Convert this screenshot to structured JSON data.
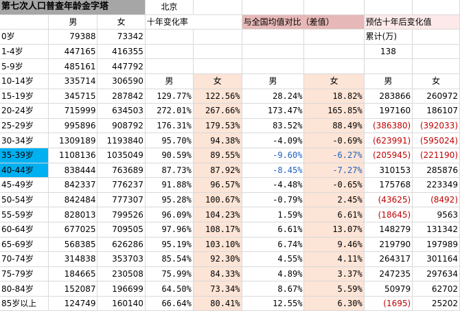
{
  "header": {
    "title": "第七次人口普查年龄金字塔",
    "city": "北京",
    "growth_label": "十年变化率",
    "compare_label": "与全国均值对比（差值）",
    "forecast_label": "预估十年后变化值",
    "cumulative_label": "累计(万)",
    "cumulative_value": "138",
    "male": "男",
    "female": "女"
  },
  "rows": [
    {
      "age": "0岁",
      "m": "79388",
      "f": "73342"
    },
    {
      "age": "1-4岁",
      "m": "447165",
      "f": "416355"
    },
    {
      "age": "5-9岁",
      "m": "485161",
      "f": "447792"
    },
    {
      "age": "10-14岁",
      "m": "335714",
      "f": "306590"
    },
    {
      "age": "15-19岁",
      "m": "345715",
      "f": "287842",
      "gm": "129.77%",
      "gf": "122.56%",
      "cm": "28.24%",
      "cf": "18.82%",
      "fm": "283866",
      "ff": "260972"
    },
    {
      "age": "20-24岁",
      "m": "715999",
      "f": "634503",
      "gm": "272.01%",
      "gf": "267.66%",
      "cm": "173.47%",
      "cf": "165.85%",
      "fm": "197160",
      "ff": "186107"
    },
    {
      "age": "25-29岁",
      "m": "995896",
      "f": "908792",
      "gm": "176.31%",
      "gf": "179.53%",
      "cm": "83.52%",
      "cf": "88.49%",
      "fm": "(386380)",
      "ff": "(392033)"
    },
    {
      "age": "30-34岁",
      "m": "1309189",
      "f": "1193840",
      "gm": "95.70%",
      "gf": "94.38%",
      "cm": "-4.09%",
      "cf": "-0.69%",
      "fm": "(623991)",
      "ff": "(595024)"
    },
    {
      "age": "35-39岁",
      "m": "1108136",
      "f": "1035049",
      "gm": "90.59%",
      "gf": "89.55%",
      "cm": "-9.60%",
      "cf": "-6.27%",
      "fm": "(205945)",
      "ff": "(221190)"
    },
    {
      "age": "40-44岁",
      "m": "838444",
      "f": "763689",
      "gm": "87.73%",
      "gf": "87.92%",
      "cm": "-8.45%",
      "cf": "-7.27%",
      "fm": "310153",
      "ff": "285876"
    },
    {
      "age": "45-49岁",
      "m": "842337",
      "f": "776237",
      "gm": "91.88%",
      "gf": "96.57%",
      "cm": "-4.48%",
      "cf": "-0.65%",
      "fm": "175768",
      "ff": "223349"
    },
    {
      "age": "50-54岁",
      "m": "842484",
      "f": "777307",
      "gm": "95.28%",
      "gf": "100.67%",
      "cm": "-0.79%",
      "cf": "2.45%",
      "fm": "(43625)",
      "ff": "(8492)"
    },
    {
      "age": "55-59岁",
      "m": "828013",
      "f": "799526",
      "gm": "96.09%",
      "gf": "104.23%",
      "cm": "1.59%",
      "cf": "6.61%",
      "fm": "(18645)",
      "ff": "9563"
    },
    {
      "age": "60-64岁",
      "m": "677025",
      "f": "709505",
      "gm": "97.96%",
      "gf": "108.17%",
      "cm": "6.61%",
      "cf": "13.07%",
      "fm": "148279",
      "ff": "131342"
    },
    {
      "age": "65-69岁",
      "m": "568385",
      "f": "626286",
      "gm": "95.19%",
      "gf": "103.10%",
      "cm": "6.74%",
      "cf": "9.46%",
      "fm": "219790",
      "ff": "197989"
    },
    {
      "age": "70-74岁",
      "m": "314838",
      "f": "353703",
      "gm": "85.54%",
      "gf": "92.30%",
      "cm": "4.55%",
      "cf": "4.11%",
      "fm": "264317",
      "ff": "301164"
    },
    {
      "age": "75-79岁",
      "m": "184665",
      "f": "230508",
      "gm": "75.99%",
      "gf": "84.33%",
      "cm": "4.89%",
      "cf": "3.37%",
      "fm": "247235",
      "ff": "297634"
    },
    {
      "age": "80-84岁",
      "m": "152087",
      "f": "196699",
      "gm": "64.50%",
      "gf": "73.34%",
      "cm": "8.67%",
      "cf": "5.59%",
      "fm": "50979",
      "ff": "62702"
    },
    {
      "age": "85岁以上",
      "m": "124749",
      "f": "160140",
      "gm": "66.64%",
      "gf": "80.41%",
      "cm": "12.55%",
      "cf": "6.30%",
      "fm": "(1695)",
      "ff": "25202"
    }
  ]
}
